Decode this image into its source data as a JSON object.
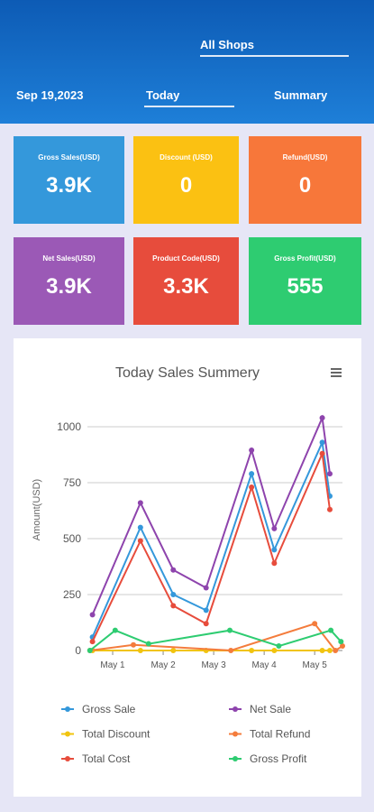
{
  "header": {
    "shop": "All Shops",
    "date": "Sep 19,2023",
    "tabs": [
      "Today",
      "Summary"
    ]
  },
  "cards": [
    {
      "label": "Gross Sales(USD)",
      "value": "3.9K",
      "color": "#3498db"
    },
    {
      "label": "Discount (USD)",
      "value": "0",
      "color": "#fbc112"
    },
    {
      "label": "Refund(USD)",
      "value": "0",
      "color": "#f7773a"
    },
    {
      "label": "Net Sales(USD)",
      "value": "3.9K",
      "color": "#9b59b6"
    },
    {
      "label": "Product Code(USD)",
      "value": "3.3K",
      "color": "#e74c3c"
    },
    {
      "label": "Gross Profit(USD)",
      "value": "555",
      "color": "#2ecc71"
    }
  ],
  "chart_data": {
    "type": "line",
    "title": "Today Sales Summery",
    "y_label": "Amount(USD)",
    "xlim": [
      0.5,
      5.55
    ],
    "xticks": [
      {
        "value": 1,
        "label": "May 1"
      },
      {
        "value": 2,
        "label": "May 2"
      },
      {
        "value": 3,
        "label": "May 3"
      },
      {
        "value": 4,
        "label": "May 4"
      },
      {
        "value": 5,
        "label": "May 5"
      }
    ],
    "ylim": [
      0,
      1000
    ],
    "yticks": [
      0,
      250,
      500,
      750,
      1000
    ],
    "grid": true,
    "series": [
      {
        "name": "Gross Sale",
        "color": "#3498db",
        "x": [
          0.6,
          1.55,
          2.2,
          2.85,
          3.75,
          4.2,
          5.15,
          5.3
        ],
        "values": [
          60,
          550,
          250,
          180,
          790,
          450,
          930,
          690
        ]
      },
      {
        "name": "Net Sale",
        "color": "#8e44ad",
        "x": [
          0.6,
          1.55,
          2.2,
          2.85,
          3.75,
          4.2,
          5.15,
          5.3
        ],
        "values": [
          160,
          660,
          360,
          280,
          895,
          545,
          1040,
          790
        ]
      },
      {
        "name": "Total Discount",
        "color": "#f1c40f",
        "x": [
          0.6,
          1.55,
          2.2,
          2.85,
          3.75,
          4.2,
          5.15,
          5.3
        ],
        "values": [
          0,
          0,
          0,
          0,
          0,
          0,
          0,
          0
        ]
      },
      {
        "name": "Total Refund",
        "color": "#f47c3c",
        "x": [
          0.55,
          1.41,
          3.34,
          5.0,
          5.41,
          5.55
        ],
        "values": [
          0,
          25,
          0,
          120,
          0,
          20
        ]
      },
      {
        "name": "Total Cost",
        "color": "#e74c3c",
        "x": [
          0.6,
          1.55,
          2.2,
          2.85,
          3.75,
          4.2,
          5.15,
          5.3
        ],
        "values": [
          40,
          490,
          200,
          120,
          730,
          390,
          880,
          630
        ]
      },
      {
        "name": "Gross Profit",
        "color": "#2ecc71",
        "x": [
          0.55,
          1.05,
          1.71,
          3.32,
          4.29,
          5.32,
          5.52
        ],
        "values": [
          0,
          90,
          30,
          90,
          20,
          90,
          40
        ]
      }
    ]
  }
}
